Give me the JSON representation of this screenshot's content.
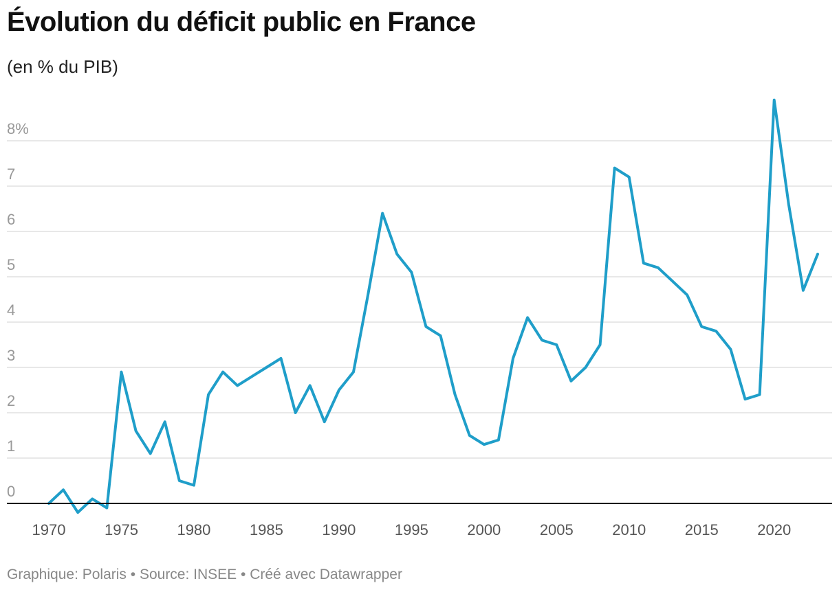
{
  "chart_data": {
    "type": "line",
    "title": "Évolution du déficit public en France",
    "subtitle": "(en % du PIB)",
    "x": [
      1970,
      1971,
      1972,
      1973,
      1974,
      1975,
      1976,
      1977,
      1978,
      1979,
      1980,
      1981,
      1982,
      1983,
      1984,
      1985,
      1986,
      1987,
      1988,
      1989,
      1990,
      1991,
      1992,
      1993,
      1994,
      1995,
      1996,
      1997,
      1998,
      1999,
      2000,
      2001,
      2002,
      2003,
      2004,
      2005,
      2006,
      2007,
      2008,
      2009,
      2010,
      2011,
      2012,
      2013,
      2014,
      2015,
      2016,
      2017,
      2018,
      2019,
      2020,
      2021,
      2022,
      2023
    ],
    "series": [
      {
        "name": "Déficit public",
        "color": "#1f9ec9",
        "values": [
          0.0,
          0.3,
          -0.2,
          0.1,
          -0.1,
          2.9,
          1.6,
          1.1,
          1.8,
          0.5,
          0.4,
          2.4,
          2.9,
          2.6,
          2.8,
          3.0,
          3.2,
          2.0,
          2.6,
          1.8,
          2.5,
          2.9,
          4.6,
          6.4,
          5.5,
          5.1,
          3.9,
          3.7,
          2.4,
          1.5,
          1.3,
          1.4,
          3.2,
          4.1,
          3.6,
          3.5,
          2.7,
          3.0,
          3.5,
          7.4,
          7.2,
          5.3,
          5.2,
          4.9,
          4.6,
          3.9,
          3.8,
          3.4,
          2.3,
          2.4,
          8.9,
          6.6,
          4.7,
          5.5
        ]
      }
    ],
    "x_ticks": [
      1970,
      1975,
      1980,
      1985,
      1990,
      1995,
      2000,
      2005,
      2010,
      2015,
      2020
    ],
    "x_tick_labels": [
      "1970",
      "1975",
      "1980",
      "1985",
      "1990",
      "1995",
      "2000",
      "2005",
      "2010",
      "2015",
      "2020"
    ],
    "y_ticks": [
      0,
      1,
      2,
      3,
      4,
      5,
      6,
      7,
      8
    ],
    "y_tick_labels": [
      "0",
      "1",
      "2",
      "3",
      "4",
      "5",
      "6",
      "7",
      "8%"
    ],
    "xlabel": "",
    "ylabel": "",
    "xlim": [
      1970,
      2023
    ],
    "ylim": [
      0,
      8
    ],
    "grid": true
  },
  "footer": "Graphique: Polaris • Source: INSEE • Créé avec Datawrapper",
  "colors": {
    "line": "#1f9ec9",
    "grid": "#e0e0e0",
    "baseline": "#111111",
    "tick_text": "#999999",
    "x_tick_text": "#555555"
  }
}
